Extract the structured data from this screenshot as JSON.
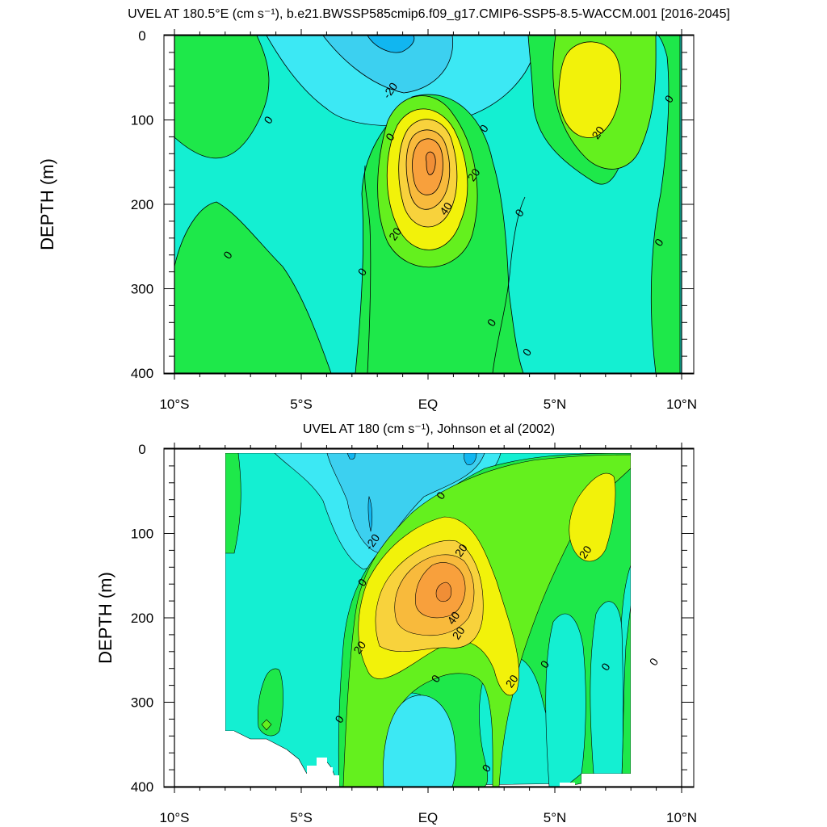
{
  "chart_data": [
    {
      "type": "contour",
      "title": "UVEL AT 180.5°E (cm s⁻¹), b.e21.BWSSP585cmip6.f09_g17.CMIP6-SSP5-8.5-WACCM.001 [2016-2045]",
      "ylabel": "DEPTH (m)",
      "xlim": [
        -10,
        10
      ],
      "ylim": [
        400,
        0
      ],
      "x_ticks": [
        -10,
        -5,
        0,
        5,
        10
      ],
      "x_tick_labels": [
        "10°S",
        "5°S",
        "EQ",
        "5°N",
        "10°N"
      ],
      "y_ticks": [
        0,
        100,
        200,
        300,
        400
      ],
      "y_tick_labels": [
        "0",
        "100",
        "200",
        "300",
        "400"
      ],
      "contour_interval": 10,
      "contour_levels": [
        -30,
        -20,
        -10,
        0,
        10,
        20,
        30,
        40,
        50,
        60
      ],
      "max_value": 60,
      "core": {
        "lat": 0.1,
        "depth": 160
      },
      "contour_labels": [
        {
          "text": "-20",
          "lat": -1.5,
          "depth": 65
        },
        {
          "text": "0",
          "lat": -6.3,
          "depth": 100
        },
        {
          "text": "0",
          "lat": -1.5,
          "depth": 120
        },
        {
          "text": "0",
          "lat": 2.2,
          "depth": 110
        },
        {
          "text": "20",
          "lat": 1.8,
          "depth": 165
        },
        {
          "text": "40",
          "lat": 0.7,
          "depth": 205
        },
        {
          "text": "20",
          "lat": -1.3,
          "depth": 235
        },
        {
          "text": "20",
          "lat": 6.7,
          "depth": 115
        },
        {
          "text": "0",
          "lat": 9.5,
          "depth": 75
        },
        {
          "text": "0",
          "lat": 3.6,
          "depth": 210
        },
        {
          "text": "0",
          "lat": -7.9,
          "depth": 260
        },
        {
          "text": "0",
          "lat": -2.6,
          "depth": 280
        },
        {
          "text": "0",
          "lat": 9.1,
          "depth": 245
        },
        {
          "text": "0",
          "lat": 2.5,
          "depth": 340
        },
        {
          "text": "0",
          "lat": 3.9,
          "depth": 375
        }
      ]
    },
    {
      "type": "contour",
      "title": "UVEL AT 180 (cm s⁻¹), Johnson et al (2002)",
      "ylabel": "DEPTH (m)",
      "xlim": [
        -10,
        10
      ],
      "ylim": [
        400,
        0
      ],
      "x_ticks": [
        -10,
        -5,
        0,
        5,
        10
      ],
      "x_tick_labels": [
        "10°S",
        "5°S",
        "EQ",
        "5°N",
        "10°N"
      ],
      "y_ticks": [
        0,
        100,
        200,
        300,
        400
      ],
      "y_tick_labels": [
        "0",
        "100",
        "200",
        "300",
        "400"
      ],
      "data_extent": {
        "lat": [
          -8,
          8
        ],
        "depth": [
          0,
          400
        ]
      },
      "contour_interval": 10,
      "contour_levels": [
        -30,
        -20,
        -10,
        0,
        10,
        20,
        30,
        40,
        50,
        60
      ],
      "max_value": 60,
      "core": {
        "lat": 0.6,
        "depth": 170
      },
      "contour_labels": [
        {
          "text": "0",
          "lat": 0.5,
          "depth": 55
        },
        {
          "text": "-20",
          "lat": -2.2,
          "depth": 110
        },
        {
          "text": "20",
          "lat": 1.3,
          "depth": 120
        },
        {
          "text": "0",
          "lat": -2.6,
          "depth": 158
        },
        {
          "text": "40",
          "lat": 1.0,
          "depth": 200
        },
        {
          "text": "20",
          "lat": 1.2,
          "depth": 218
        },
        {
          "text": "20",
          "lat": -2.7,
          "depth": 235
        },
        {
          "text": "20",
          "lat": 6.2,
          "depth": 122
        },
        {
          "text": "0",
          "lat": 4.6,
          "depth": 255
        },
        {
          "text": "0",
          "lat": 7.0,
          "depth": 258
        },
        {
          "text": "0",
          "lat": 8.9,
          "depth": 252
        },
        {
          "text": "20",
          "lat": 3.3,
          "depth": 275
        },
        {
          "text": "0",
          "lat": 0.3,
          "depth": 272
        },
        {
          "text": "0",
          "lat": -3.5,
          "depth": 320
        },
        {
          "text": "0",
          "lat": 2.3,
          "depth": 378
        }
      ]
    }
  ],
  "colors": {
    "le_m30": "#11b6f0",
    "m30_m20": "#3cd0f0",
    "m20_m10": "#3ce8f4",
    "m10_0": "#14efd2",
    "0_10": "#1ee84a",
    "10_20": "#64f01e",
    "20_30": "#f2f20a",
    "30_40": "#f8d23c",
    "40_50": "#f8ba3c",
    "50_60": "#f8a03c",
    "ge_60": "#f08e36"
  }
}
